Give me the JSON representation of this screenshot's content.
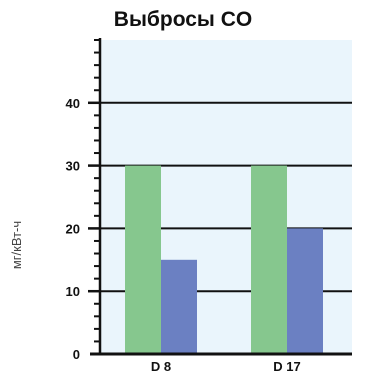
{
  "chart_data": {
    "type": "bar",
    "title": "Выбросы CO",
    "xlabel": "",
    "ylabel": "мг/кВт-ч",
    "categories": [
      "D 8",
      "D 17"
    ],
    "series": [
      {
        "values": [
          30,
          30
        ],
        "color": "#86c78e"
      },
      {
        "values": [
          15,
          20
        ],
        "color": "#6b80c2"
      }
    ],
    "ylim": [
      0,
      50
    ],
    "yticks": [
      0,
      10,
      20,
      30,
      40
    ],
    "yticks_minor_step": 2,
    "grid": true,
    "plot_background": "#eaf5fc"
  }
}
